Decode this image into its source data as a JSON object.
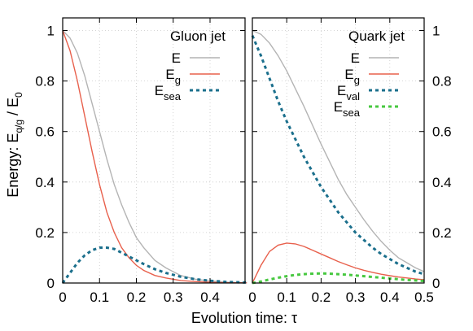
{
  "figure": {
    "ylabel_main": "Energy: E",
    "ylabel_sub": "q/g",
    "ylabel_tail": " / E",
    "ylabel_sub2": "0",
    "xlabel": "Evolution time: τ"
  },
  "chart_data": [
    {
      "type": "line",
      "title": "Gluon jet",
      "xlim": [
        0,
        0.5
      ],
      "ylim": [
        0,
        1.05
      ],
      "xticks": [
        "0",
        "0.1",
        "0.2",
        "0.3",
        "0.4"
      ],
      "yticks": [
        "0",
        "0.2",
        "0.4",
        "0.6",
        "0.8",
        "1"
      ],
      "ytick_side": "left",
      "grid": true,
      "legend_position": "top-right",
      "series": [
        {
          "name": "E",
          "label_main": "E",
          "label_sub": "",
          "color": "#b4b4b4",
          "dash": "solid",
          "x": [
            0,
            0.02,
            0.04,
            0.06,
            0.08,
            0.1,
            0.12,
            0.14,
            0.16,
            0.18,
            0.2,
            0.22,
            0.25,
            0.28,
            0.32,
            0.36,
            0.4,
            0.45,
            0.5
          ],
          "y": [
            1.0,
            0.97,
            0.91,
            0.82,
            0.71,
            0.6,
            0.49,
            0.39,
            0.31,
            0.24,
            0.18,
            0.14,
            0.09,
            0.06,
            0.03,
            0.015,
            0.008,
            0.003,
            0.001
          ]
        },
        {
          "name": "Eg",
          "label_main": "E",
          "label_sub": "g",
          "color": "#e8604c",
          "dash": "solid",
          "x": [
            0,
            0.02,
            0.04,
            0.06,
            0.08,
            0.1,
            0.12,
            0.14,
            0.16,
            0.18,
            0.2,
            0.22,
            0.25,
            0.28,
            0.32,
            0.36,
            0.4,
            0.45,
            0.5
          ],
          "y": [
            1.0,
            0.92,
            0.8,
            0.66,
            0.52,
            0.39,
            0.28,
            0.2,
            0.14,
            0.1,
            0.07,
            0.05,
            0.03,
            0.02,
            0.01,
            0.006,
            0.003,
            0.001,
            0.0005
          ]
        },
        {
          "name": "Esea",
          "label_main": "E",
          "label_sub": "sea",
          "color": "#1b6f8c",
          "dash": "dotted",
          "x": [
            0,
            0.02,
            0.04,
            0.06,
            0.08,
            0.1,
            0.12,
            0.14,
            0.16,
            0.18,
            0.2,
            0.22,
            0.25,
            0.28,
            0.32,
            0.36,
            0.4,
            0.45,
            0.5
          ],
          "y": [
            0.0,
            0.04,
            0.08,
            0.11,
            0.13,
            0.14,
            0.14,
            0.135,
            0.12,
            0.105,
            0.09,
            0.075,
            0.055,
            0.04,
            0.025,
            0.015,
            0.009,
            0.004,
            0.002
          ]
        }
      ]
    },
    {
      "type": "line",
      "title": "Quark jet",
      "xlim": [
        0,
        0.5
      ],
      "ylim": [
        0,
        1.05
      ],
      "xticks": [
        "0",
        "0.1",
        "0.2",
        "0.3",
        "0.4",
        "0.5"
      ],
      "yticks": [
        "0",
        "0.2",
        "0.4",
        "0.6",
        "0.8",
        "1"
      ],
      "ytick_side": "right",
      "grid": true,
      "legend_position": "top-right",
      "series": [
        {
          "name": "E",
          "label_main": "E",
          "label_sub": "",
          "color": "#b4b4b4",
          "dash": "solid",
          "x": [
            0,
            0.025,
            0.05,
            0.075,
            0.1,
            0.125,
            0.15,
            0.175,
            0.2,
            0.225,
            0.25,
            0.275,
            0.3,
            0.325,
            0.35,
            0.375,
            0.4,
            0.425,
            0.45,
            0.475,
            0.5
          ],
          "y": [
            1.0,
            0.985,
            0.95,
            0.9,
            0.84,
            0.77,
            0.7,
            0.625,
            0.55,
            0.48,
            0.41,
            0.35,
            0.3,
            0.25,
            0.205,
            0.165,
            0.13,
            0.1,
            0.08,
            0.06,
            0.045
          ]
        },
        {
          "name": "Eg",
          "label_main": "E",
          "label_sub": "g",
          "color": "#e8604c",
          "dash": "solid",
          "x": [
            0,
            0.025,
            0.05,
            0.075,
            0.1,
            0.125,
            0.15,
            0.175,
            0.2,
            0.225,
            0.25,
            0.275,
            0.3,
            0.325,
            0.35,
            0.375,
            0.4,
            0.425,
            0.45,
            0.475,
            0.5
          ],
          "y": [
            0.0,
            0.07,
            0.125,
            0.15,
            0.158,
            0.155,
            0.145,
            0.13,
            0.115,
            0.1,
            0.085,
            0.072,
            0.06,
            0.05,
            0.042,
            0.035,
            0.029,
            0.024,
            0.02,
            0.016,
            0.013
          ]
        },
        {
          "name": "Eval",
          "label_main": "E",
          "label_sub": "val",
          "color": "#1b6f8c",
          "dash": "dotted",
          "x": [
            0,
            0.025,
            0.05,
            0.075,
            0.1,
            0.125,
            0.15,
            0.175,
            0.2,
            0.225,
            0.25,
            0.275,
            0.3,
            0.325,
            0.35,
            0.375,
            0.4,
            0.425,
            0.45,
            0.475,
            0.5
          ],
          "y": [
            0.98,
            0.9,
            0.81,
            0.72,
            0.64,
            0.57,
            0.5,
            0.44,
            0.38,
            0.33,
            0.28,
            0.24,
            0.2,
            0.17,
            0.14,
            0.115,
            0.095,
            0.075,
            0.06,
            0.045,
            0.035
          ]
        },
        {
          "name": "Esea",
          "label_main": "E",
          "label_sub": "sea",
          "color": "#47c840",
          "dash": "dotted",
          "x": [
            0,
            0.025,
            0.05,
            0.075,
            0.1,
            0.125,
            0.15,
            0.175,
            0.2,
            0.225,
            0.25,
            0.275,
            0.3,
            0.325,
            0.35,
            0.375,
            0.4,
            0.425,
            0.45,
            0.475,
            0.5
          ],
          "y": [
            0.0,
            0.006,
            0.014,
            0.021,
            0.027,
            0.032,
            0.035,
            0.037,
            0.038,
            0.037,
            0.035,
            0.033,
            0.03,
            0.027,
            0.024,
            0.021,
            0.018,
            0.015,
            0.012,
            0.01,
            0.008
          ]
        }
      ]
    }
  ]
}
